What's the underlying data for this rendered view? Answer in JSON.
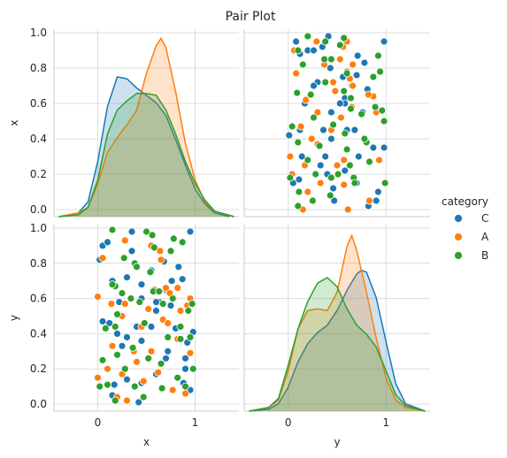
{
  "colors": {
    "C": "#1f77b4",
    "A": "#ff7f0e",
    "B": "#2ca02c",
    "grid": "#dcdcdc",
    "spine": "#cccccc"
  },
  "chart_data": {
    "type": "pairplot",
    "title": "Pair Plot",
    "variables": [
      "x",
      "y"
    ],
    "hue": "category",
    "legend": {
      "title": "category",
      "entries": [
        "C",
        "A",
        "B"
      ],
      "placement": "right"
    },
    "x_ticks": [
      "0",
      "1"
    ],
    "y_ticks": [
      "0.0",
      "0.2",
      "0.4",
      "0.6",
      "0.8",
      "1.0"
    ],
    "xlim": [
      -0.45,
      1.45
    ],
    "ylim": [
      -0.04,
      1.02
    ],
    "grid": true,
    "series": [
      {
        "name": "C",
        "points": [
          [
            0.95,
            0.98
          ],
          [
            0.02,
            0.82
          ],
          [
            0.05,
            0.9
          ],
          [
            0.1,
            0.92
          ],
          [
            0.15,
            0.7
          ],
          [
            0.22,
            0.58
          ],
          [
            0.3,
            0.72
          ],
          [
            0.35,
            0.87
          ],
          [
            0.45,
            0.6
          ],
          [
            0.55,
            0.76
          ],
          [
            0.63,
            0.58
          ],
          [
            0.7,
            0.65
          ],
          [
            0.75,
            0.56
          ],
          [
            0.8,
            0.43
          ],
          [
            0.87,
            0.71
          ],
          [
            0.92,
            0.35
          ],
          [
            0.98,
            0.41
          ],
          [
            0.05,
            0.47
          ],
          [
            0.12,
            0.46
          ],
          [
            0.2,
            0.4
          ],
          [
            0.3,
            0.38
          ],
          [
            0.4,
            0.44
          ],
          [
            0.45,
            0.36
          ],
          [
            0.55,
            0.44
          ],
          [
            0.6,
            0.58
          ],
          [
            0.72,
            0.3
          ],
          [
            0.88,
            0.12
          ],
          [
            0.95,
            0.08
          ],
          [
            0.17,
            0.11
          ],
          [
            0.3,
            0.14
          ],
          [
            0.45,
            0.12
          ],
          [
            0.6,
            0.17
          ],
          [
            0.7,
            0.26
          ],
          [
            0.83,
            0.78
          ],
          [
            0.9,
            0.2
          ],
          [
            0.42,
            0.01
          ],
          [
            0.6,
            0.53
          ],
          [
            0.35,
            0.98
          ],
          [
            0.68,
            0.81
          ],
          [
            0.9,
            0.26
          ],
          [
            0.45,
            0.68
          ],
          [
            0.15,
            0.05
          ],
          [
            0.25,
            0.33
          ],
          [
            0.76,
            0.7
          ]
        ]
      },
      {
        "name": "A",
        "points": [
          [
            0.0,
            0.61
          ],
          [
            0.05,
            0.83
          ],
          [
            0.14,
            0.57
          ],
          [
            0.28,
            0.93
          ],
          [
            0.55,
            0.9
          ],
          [
            0.64,
            0.87
          ],
          [
            0.7,
            0.66
          ],
          [
            0.78,
            0.6
          ],
          [
            0.82,
            0.66
          ],
          [
            0.95,
            0.6
          ],
          [
            0.25,
            0.5
          ],
          [
            0.45,
            0.44
          ],
          [
            0.58,
            0.65
          ],
          [
            0.74,
            0.63
          ],
          [
            0.67,
            0.48
          ],
          [
            0.15,
            0.33
          ],
          [
            0.37,
            0.3
          ],
          [
            0.55,
            0.3
          ],
          [
            0.1,
            0.2
          ],
          [
            0.25,
            0.17
          ],
          [
            0.47,
            0.13
          ],
          [
            0.62,
            0.18
          ],
          [
            0.0,
            0.15
          ],
          [
            0.2,
            0.04
          ],
          [
            0.3,
            0.02
          ],
          [
            0.77,
            0.08
          ],
          [
            0.85,
            0.53
          ],
          [
            0.95,
            0.29
          ],
          [
            0.9,
            0.06
          ],
          [
            0.4,
            0.24
          ],
          [
            0.28,
            0.57
          ],
          [
            0.65,
            0.82
          ],
          [
            0.05,
            0.25
          ],
          [
            0.52,
            0.54
          ],
          [
            0.82,
            0.37
          ],
          [
            0.72,
            0.46
          ],
          [
            0.92,
            0.56
          ]
        ]
      },
      {
        "name": "B",
        "points": [
          [
            0.15,
            0.99
          ],
          [
            0.5,
            0.98
          ],
          [
            0.78,
            0.94
          ],
          [
            0.58,
            0.89
          ],
          [
            0.38,
            0.8
          ],
          [
            0.4,
            0.78
          ],
          [
            0.18,
            0.67
          ],
          [
            0.25,
            0.63
          ],
          [
            0.34,
            0.6
          ],
          [
            0.57,
            0.64
          ],
          [
            0.63,
            0.64
          ],
          [
            0.77,
            0.6
          ],
          [
            0.93,
            0.53
          ],
          [
            0.67,
            0.57
          ],
          [
            0.43,
            0.58
          ],
          [
            0.18,
            0.44
          ],
          [
            0.48,
            0.46
          ],
          [
            0.08,
            0.43
          ],
          [
            0.2,
            0.51
          ],
          [
            0.85,
            0.37
          ],
          [
            0.95,
            0.38
          ],
          [
            0.72,
            0.38
          ],
          [
            0.36,
            0.32
          ],
          [
            0.05,
            0.25
          ],
          [
            0.2,
            0.28
          ],
          [
            0.38,
            0.1
          ],
          [
            0.52,
            0.26
          ],
          [
            0.65,
            0.23
          ],
          [
            0.82,
            0.15
          ],
          [
            0.02,
            0.1
          ],
          [
            0.18,
            0.02
          ],
          [
            0.47,
            0.04
          ],
          [
            0.66,
            0.09
          ],
          [
            0.9,
            0.1
          ],
          [
            0.28,
            0.2
          ],
          [
            0.75,
            0.87
          ],
          [
            0.97,
            0.57
          ],
          [
            0.27,
            0.83
          ],
          [
            0.56,
            0.96
          ],
          [
            0.85,
            0.44
          ],
          [
            0.1,
            0.11
          ],
          [
            0.98,
            0.2
          ],
          [
            0.15,
            0.68
          ],
          [
            0.54,
            0.75
          ],
          [
            0.87,
            0.92
          ]
        ]
      }
    ],
    "kde": {
      "x_var": {
        "C": [
          [
            -0.4,
            0.0
          ],
          [
            -0.2,
            0.02
          ],
          [
            -0.1,
            0.08
          ],
          [
            0.0,
            0.3
          ],
          [
            0.1,
            0.6
          ],
          [
            0.2,
            0.76
          ],
          [
            0.3,
            0.75
          ],
          [
            0.4,
            0.7
          ],
          [
            0.5,
            0.66
          ],
          [
            0.6,
            0.62
          ],
          [
            0.7,
            0.55
          ],
          [
            0.8,
            0.42
          ],
          [
            0.9,
            0.28
          ],
          [
            1.0,
            0.15
          ],
          [
            1.1,
            0.07
          ],
          [
            1.2,
            0.02
          ],
          [
            1.35,
            0.0
          ]
        ],
        "A": [
          [
            -0.4,
            0.0
          ],
          [
            -0.2,
            0.02
          ],
          [
            -0.1,
            0.05
          ],
          [
            0.0,
            0.18
          ],
          [
            0.1,
            0.35
          ],
          [
            0.2,
            0.43
          ],
          [
            0.3,
            0.5
          ],
          [
            0.4,
            0.58
          ],
          [
            0.5,
            0.78
          ],
          [
            0.6,
            0.93
          ],
          [
            0.65,
            0.97
          ],
          [
            0.7,
            0.92
          ],
          [
            0.8,
            0.68
          ],
          [
            0.9,
            0.4
          ],
          [
            1.0,
            0.2
          ],
          [
            1.1,
            0.08
          ],
          [
            1.2,
            0.03
          ],
          [
            1.4,
            0.0
          ]
        ],
        "B": [
          [
            -0.4,
            0.0
          ],
          [
            -0.2,
            0.01
          ],
          [
            -0.1,
            0.05
          ],
          [
            0.0,
            0.2
          ],
          [
            0.1,
            0.45
          ],
          [
            0.2,
            0.58
          ],
          [
            0.3,
            0.63
          ],
          [
            0.4,
            0.67
          ],
          [
            0.5,
            0.67
          ],
          [
            0.6,
            0.66
          ],
          [
            0.7,
            0.58
          ],
          [
            0.8,
            0.45
          ],
          [
            0.9,
            0.3
          ],
          [
            1.0,
            0.18
          ],
          [
            1.1,
            0.09
          ],
          [
            1.2,
            0.03
          ],
          [
            1.4,
            0.0
          ]
        ]
      },
      "y_var": {
        "C": [
          [
            -0.4,
            0.0
          ],
          [
            -0.2,
            0.01
          ],
          [
            -0.1,
            0.04
          ],
          [
            0.0,
            0.13
          ],
          [
            0.1,
            0.27
          ],
          [
            0.2,
            0.37
          ],
          [
            0.3,
            0.43
          ],
          [
            0.4,
            0.47
          ],
          [
            0.5,
            0.55
          ],
          [
            0.6,
            0.66
          ],
          [
            0.7,
            0.75
          ],
          [
            0.75,
            0.77
          ],
          [
            0.8,
            0.76
          ],
          [
            0.9,
            0.62
          ],
          [
            1.0,
            0.38
          ],
          [
            1.1,
            0.15
          ],
          [
            1.2,
            0.04
          ],
          [
            1.4,
            0.0
          ]
        ],
        "A": [
          [
            -0.4,
            0.0
          ],
          [
            -0.2,
            0.02
          ],
          [
            -0.1,
            0.06
          ],
          [
            0.0,
            0.22
          ],
          [
            0.1,
            0.45
          ],
          [
            0.2,
            0.55
          ],
          [
            0.3,
            0.56
          ],
          [
            0.4,
            0.55
          ],
          [
            0.5,
            0.65
          ],
          [
            0.6,
            0.9
          ],
          [
            0.65,
            0.96
          ],
          [
            0.7,
            0.88
          ],
          [
            0.8,
            0.65
          ],
          [
            0.9,
            0.4
          ],
          [
            1.0,
            0.18
          ],
          [
            1.1,
            0.06
          ],
          [
            1.2,
            0.02
          ],
          [
            1.4,
            0.0
          ]
        ],
        "B": [
          [
            -0.4,
            0.0
          ],
          [
            -0.2,
            0.02
          ],
          [
            -0.1,
            0.07
          ],
          [
            0.0,
            0.25
          ],
          [
            0.1,
            0.45
          ],
          [
            0.2,
            0.6
          ],
          [
            0.3,
            0.7
          ],
          [
            0.4,
            0.73
          ],
          [
            0.5,
            0.68
          ],
          [
            0.6,
            0.56
          ],
          [
            0.7,
            0.47
          ],
          [
            0.8,
            0.42
          ],
          [
            0.9,
            0.35
          ],
          [
            1.0,
            0.22
          ],
          [
            1.1,
            0.09
          ],
          [
            1.2,
            0.03
          ],
          [
            1.4,
            0.0
          ]
        ]
      },
      "density_max": 1.02
    }
  }
}
